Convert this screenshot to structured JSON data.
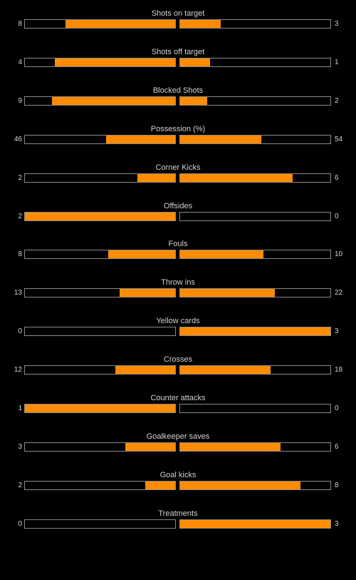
{
  "colors": {
    "background": "#000000",
    "bar_fill": "#ff8c00",
    "bar_border": "#8a8a8a",
    "text": "#d2d2d2"
  },
  "stats": [
    {
      "label": "Shots on target",
      "home": "8",
      "away": "3",
      "home_fill": 0.73,
      "away_fill": 0.27
    },
    {
      "label": "Shots off target",
      "home": "4",
      "away": "1",
      "home_fill": 0.8,
      "away_fill": 0.2
    },
    {
      "label": "Blocked Shots",
      "home": "9",
      "away": "2",
      "home_fill": 0.82,
      "away_fill": 0.18
    },
    {
      "label": "Possession (%)",
      "home": "46",
      "away": "54",
      "home_fill": 0.46,
      "away_fill": 0.54
    },
    {
      "label": "Corner Kicks",
      "home": "2",
      "away": "6",
      "home_fill": 0.25,
      "away_fill": 0.75
    },
    {
      "label": "Offsides",
      "home": "2",
      "away": "0",
      "home_fill": 1.0,
      "away_fill": 0.0
    },
    {
      "label": "Fouls",
      "home": "8",
      "away": "10",
      "home_fill": 0.444,
      "away_fill": 0.556
    },
    {
      "label": "Throw ins",
      "home": "13",
      "away": "22",
      "home_fill": 0.371,
      "away_fill": 0.629
    },
    {
      "label": "Yellow cards",
      "home": "0",
      "away": "3",
      "home_fill": 0.0,
      "away_fill": 1.0
    },
    {
      "label": "Crosses",
      "home": "12",
      "away": "18",
      "home_fill": 0.4,
      "away_fill": 0.6
    },
    {
      "label": "Counter attacks",
      "home": "1",
      "away": "0",
      "home_fill": 1.0,
      "away_fill": 0.0
    },
    {
      "label": "Goalkeeper saves",
      "home": "3",
      "away": "6",
      "home_fill": 0.333,
      "away_fill": 0.667
    },
    {
      "label": "Goal kicks",
      "home": "2",
      "away": "8",
      "home_fill": 0.2,
      "away_fill": 0.8
    },
    {
      "label": "Treatments",
      "home": "0",
      "away": "3",
      "home_fill": 0.0,
      "away_fill": 1.0
    }
  ]
}
